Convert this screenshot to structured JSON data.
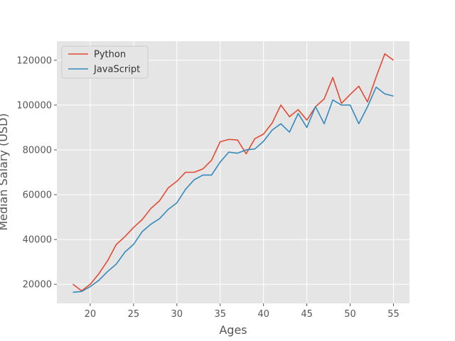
{
  "chart_data": {
    "type": "line",
    "title": "",
    "xlabel": "Ages",
    "ylabel": "Median Salary (USD)",
    "xlim": [
      16.15,
      56.85
    ],
    "ylim": [
      11500,
      128500
    ],
    "xticks": [
      20,
      25,
      30,
      35,
      40,
      45,
      50,
      55
    ],
    "yticks": [
      20000,
      40000,
      60000,
      80000,
      100000,
      120000
    ],
    "grid": true,
    "legend_position": "top-left",
    "x": [
      18,
      19,
      20,
      21,
      22,
      23,
      24,
      25,
      26,
      27,
      28,
      29,
      30,
      31,
      32,
      33,
      34,
      35,
      36,
      37,
      38,
      39,
      40,
      41,
      42,
      43,
      44,
      45,
      46,
      47,
      48,
      49,
      50,
      51,
      52,
      53,
      54,
      55
    ],
    "series": [
      {
        "name": "Python",
        "color": "#E24A33",
        "values": [
          20046,
          17100,
          20000,
          24744,
          30500,
          37732,
          41247,
          45372,
          48876,
          53850,
          57287,
          63016,
          65998,
          70003,
          70000,
          71496,
          75370,
          83640,
          84666,
          84392,
          78254,
          85000,
          87038,
          91991,
          100000,
          94796,
          97962,
          93302,
          99240,
          102736,
          112285,
          100771,
          104708,
          108423,
          101407,
          112542,
          122870,
          120000
        ]
      },
      {
        "name": "JavaScript",
        "color": "#348ABD",
        "values": [
          16446,
          16791,
          18942,
          21780,
          25704,
          29000,
          34372,
          37810,
          43515,
          46823,
          49293,
          53437,
          56373,
          62375,
          66674,
          68745,
          68746,
          74583,
          79000,
          78508,
          79996,
          80403,
          83820,
          88833,
          91660,
          87892,
          96243,
          90000,
          99313,
          91660,
          102264,
          100000,
          100000,
          91660,
          99240,
          108000,
          105000,
          104000
        ]
      }
    ]
  }
}
